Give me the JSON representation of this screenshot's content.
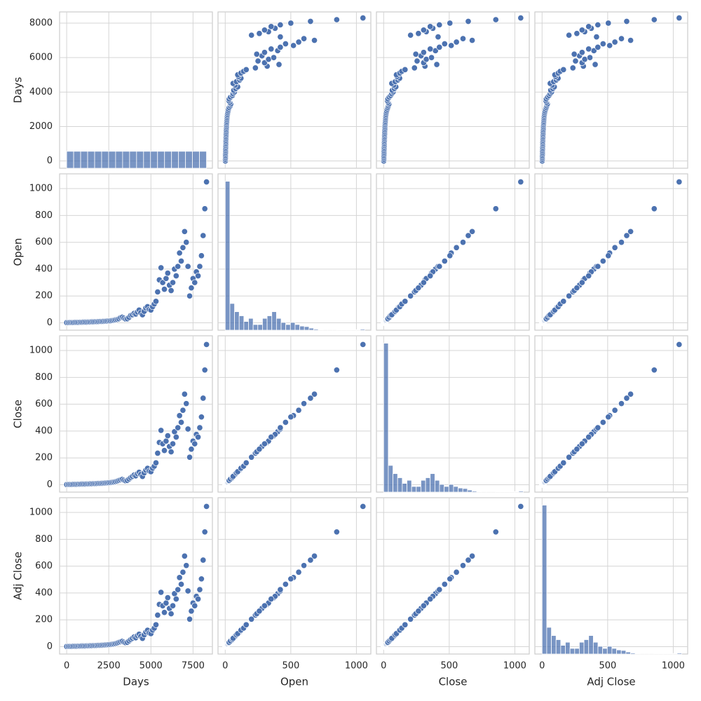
{
  "chart_data": {
    "type": "pairplot",
    "color": "#4c72b0",
    "grid": true,
    "variables": [
      {
        "name": "Days",
        "lim": [
          -420,
          8650
        ],
        "xticks": [
          0,
          2500,
          5000,
          7500
        ],
        "yticks": [
          0,
          2000,
          4000,
          6000,
          8000
        ],
        "values": [
          0,
          100,
          200,
          300,
          400,
          500,
          600,
          700,
          800,
          900,
          1000,
          1100,
          1200,
          1300,
          1400,
          1500,
          1600,
          1700,
          1800,
          1900,
          2000,
          2100,
          2200,
          2300,
          2400,
          2500,
          2600,
          2700,
          2800,
          2900,
          3000,
          3100,
          3200,
          3300,
          3400,
          3500,
          3600,
          3700,
          3800,
          3900,
          4000,
          4100,
          4200,
          4300,
          4400,
          4500,
          4600,
          4700,
          4800,
          4900,
          5000,
          5100,
          5200,
          5300,
          5400,
          5500,
          5600,
          5700,
          5800,
          5900,
          6000,
          6100,
          6200,
          6300,
          6400,
          6500,
          6600,
          6700,
          6800,
          6900,
          7000,
          7100,
          7200,
          7300,
          7400,
          7500,
          7600,
          7700,
          7800,
          7900,
          8000,
          8100,
          8200,
          8300
        ],
        "hist": {
          "bins": [
            0,
            415,
            830,
            1245,
            1660,
            2075,
            2490,
            2905,
            3320,
            3735,
            4150,
            4565,
            4980,
            5395,
            5810,
            6225,
            6640,
            7055,
            7470,
            7885,
            8300
          ],
          "counts": [
            330,
            330,
            330,
            330,
            330,
            330,
            330,
            330,
            330,
            330,
            330,
            330,
            330,
            330,
            330,
            330,
            330,
            330,
            330,
            330
          ]
        }
      },
      {
        "name": "Open",
        "lim": [
          -55,
          1110
        ],
        "xticks": [
          0,
          500,
          1000
        ],
        "yticks": [
          0,
          200,
          400,
          600,
          800,
          1000
        ],
        "values": [
          1,
          1,
          2,
          2,
          2,
          3,
          3,
          3,
          4,
          4,
          5,
          5,
          5,
          6,
          6,
          7,
          7,
          8,
          8,
          9,
          10,
          10,
          11,
          12,
          13,
          14,
          15,
          17,
          19,
          22,
          25,
          30,
          38,
          42,
          35,
          28,
          30,
          40,
          55,
          60,
          70,
          65,
          80,
          95,
          75,
          60,
          85,
          110,
          120,
          100,
          95,
          120,
          140,
          160,
          230,
          320,
          410,
          300,
          250,
          330,
          370,
          280,
          240,
          300,
          400,
          350,
          420,
          520,
          460,
          560,
          680,
          600,
          420,
          200,
          260,
          330,
          300,
          380,
          350,
          420,
          500,
          650,
          850,
          1050
        ],
        "hist": {
          "bins": [
            0,
            35.5,
            71,
            106.5,
            142,
            177.5,
            213,
            248.5,
            284,
            319.5,
            355,
            390.5,
            426,
            461.5,
            497,
            532.5,
            568,
            603.5,
            639,
            674.5,
            710,
            745.5,
            781,
            816.5,
            852,
            887.5,
            923,
            958.5,
            994,
            1029.5,
            1065
          ],
          "counts": [
            2900,
            520,
            360,
            280,
            170,
            230,
            110,
            110,
            230,
            280,
            360,
            230,
            150,
            110,
            150,
            110,
            80,
            70,
            40,
            20,
            10,
            5,
            5,
            5,
            10,
            10,
            10,
            10,
            10,
            20
          ]
        }
      },
      {
        "name": "Close",
        "lim": [
          -55,
          1110
        ],
        "xticks": [
          0,
          500,
          1000
        ],
        "yticks": [
          0,
          200,
          400,
          600,
          800,
          1000
        ],
        "values": [
          1,
          2,
          2,
          2,
          3,
          3,
          3,
          4,
          4,
          5,
          5,
          5,
          6,
          6,
          7,
          7,
          8,
          8,
          9,
          10,
          10,
          11,
          12,
          13,
          14,
          15,
          16,
          18,
          20,
          23,
          27,
          32,
          36,
          40,
          34,
          29,
          32,
          42,
          53,
          62,
          72,
          66,
          82,
          93,
          77,
          62,
          88,
          108,
          122,
          102,
          97,
          123,
          138,
          163,
          235,
          315,
          405,
          305,
          255,
          325,
          365,
          285,
          245,
          305,
          395,
          355,
          425,
          515,
          465,
          555,
          675,
          605,
          415,
          205,
          265,
          325,
          305,
          375,
          355,
          425,
          505,
          645,
          855,
          1045
        ],
        "hist": {
          "bins": [
            0,
            35.5,
            71,
            106.5,
            142,
            177.5,
            213,
            248.5,
            284,
            319.5,
            355,
            390.5,
            426,
            461.5,
            497,
            532.5,
            568,
            603.5,
            639,
            674.5,
            710,
            745.5,
            781,
            816.5,
            852,
            887.5,
            923,
            958.5,
            994,
            1029.5,
            1065
          ],
          "counts": [
            2900,
            520,
            360,
            280,
            170,
            230,
            110,
            110,
            230,
            280,
            360,
            230,
            150,
            110,
            150,
            110,
            80,
            70,
            40,
            20,
            10,
            5,
            5,
            5,
            10,
            10,
            10,
            10,
            10,
            20
          ]
        }
      },
      {
        "name": "Adj Close",
        "lim": [
          -55,
          1110
        ],
        "xticks": [
          0,
          500,
          1000
        ],
        "yticks": [
          0,
          200,
          400,
          600,
          800,
          1000
        ],
        "values": [
          1,
          2,
          2,
          2,
          3,
          3,
          3,
          4,
          4,
          5,
          5,
          5,
          6,
          6,
          7,
          7,
          8,
          8,
          9,
          10,
          10,
          11,
          12,
          13,
          14,
          15,
          16,
          18,
          20,
          23,
          27,
          32,
          36,
          40,
          34,
          29,
          32,
          42,
          53,
          62,
          72,
          66,
          82,
          93,
          77,
          62,
          88,
          108,
          122,
          102,
          97,
          123,
          138,
          163,
          235,
          315,
          405,
          305,
          255,
          325,
          365,
          285,
          245,
          305,
          395,
          355,
          425,
          515,
          465,
          555,
          675,
          605,
          415,
          205,
          265,
          325,
          305,
          375,
          355,
          425,
          505,
          645,
          855,
          1045
        ],
        "hist": {
          "bins": [
            0,
            35.5,
            71,
            106.5,
            142,
            177.5,
            213,
            248.5,
            284,
            319.5,
            355,
            390.5,
            426,
            461.5,
            497,
            532.5,
            568,
            603.5,
            639,
            674.5,
            710,
            745.5,
            781,
            816.5,
            852,
            887.5,
            923,
            958.5,
            994,
            1029.5,
            1065
          ],
          "counts": [
            2900,
            520,
            360,
            280,
            170,
            230,
            110,
            110,
            230,
            280,
            360,
            230,
            150,
            110,
            150,
            110,
            80,
            70,
            40,
            20,
            10,
            5,
            5,
            5,
            10,
            10,
            10,
            10,
            10,
            20
          ]
        }
      }
    ]
  }
}
